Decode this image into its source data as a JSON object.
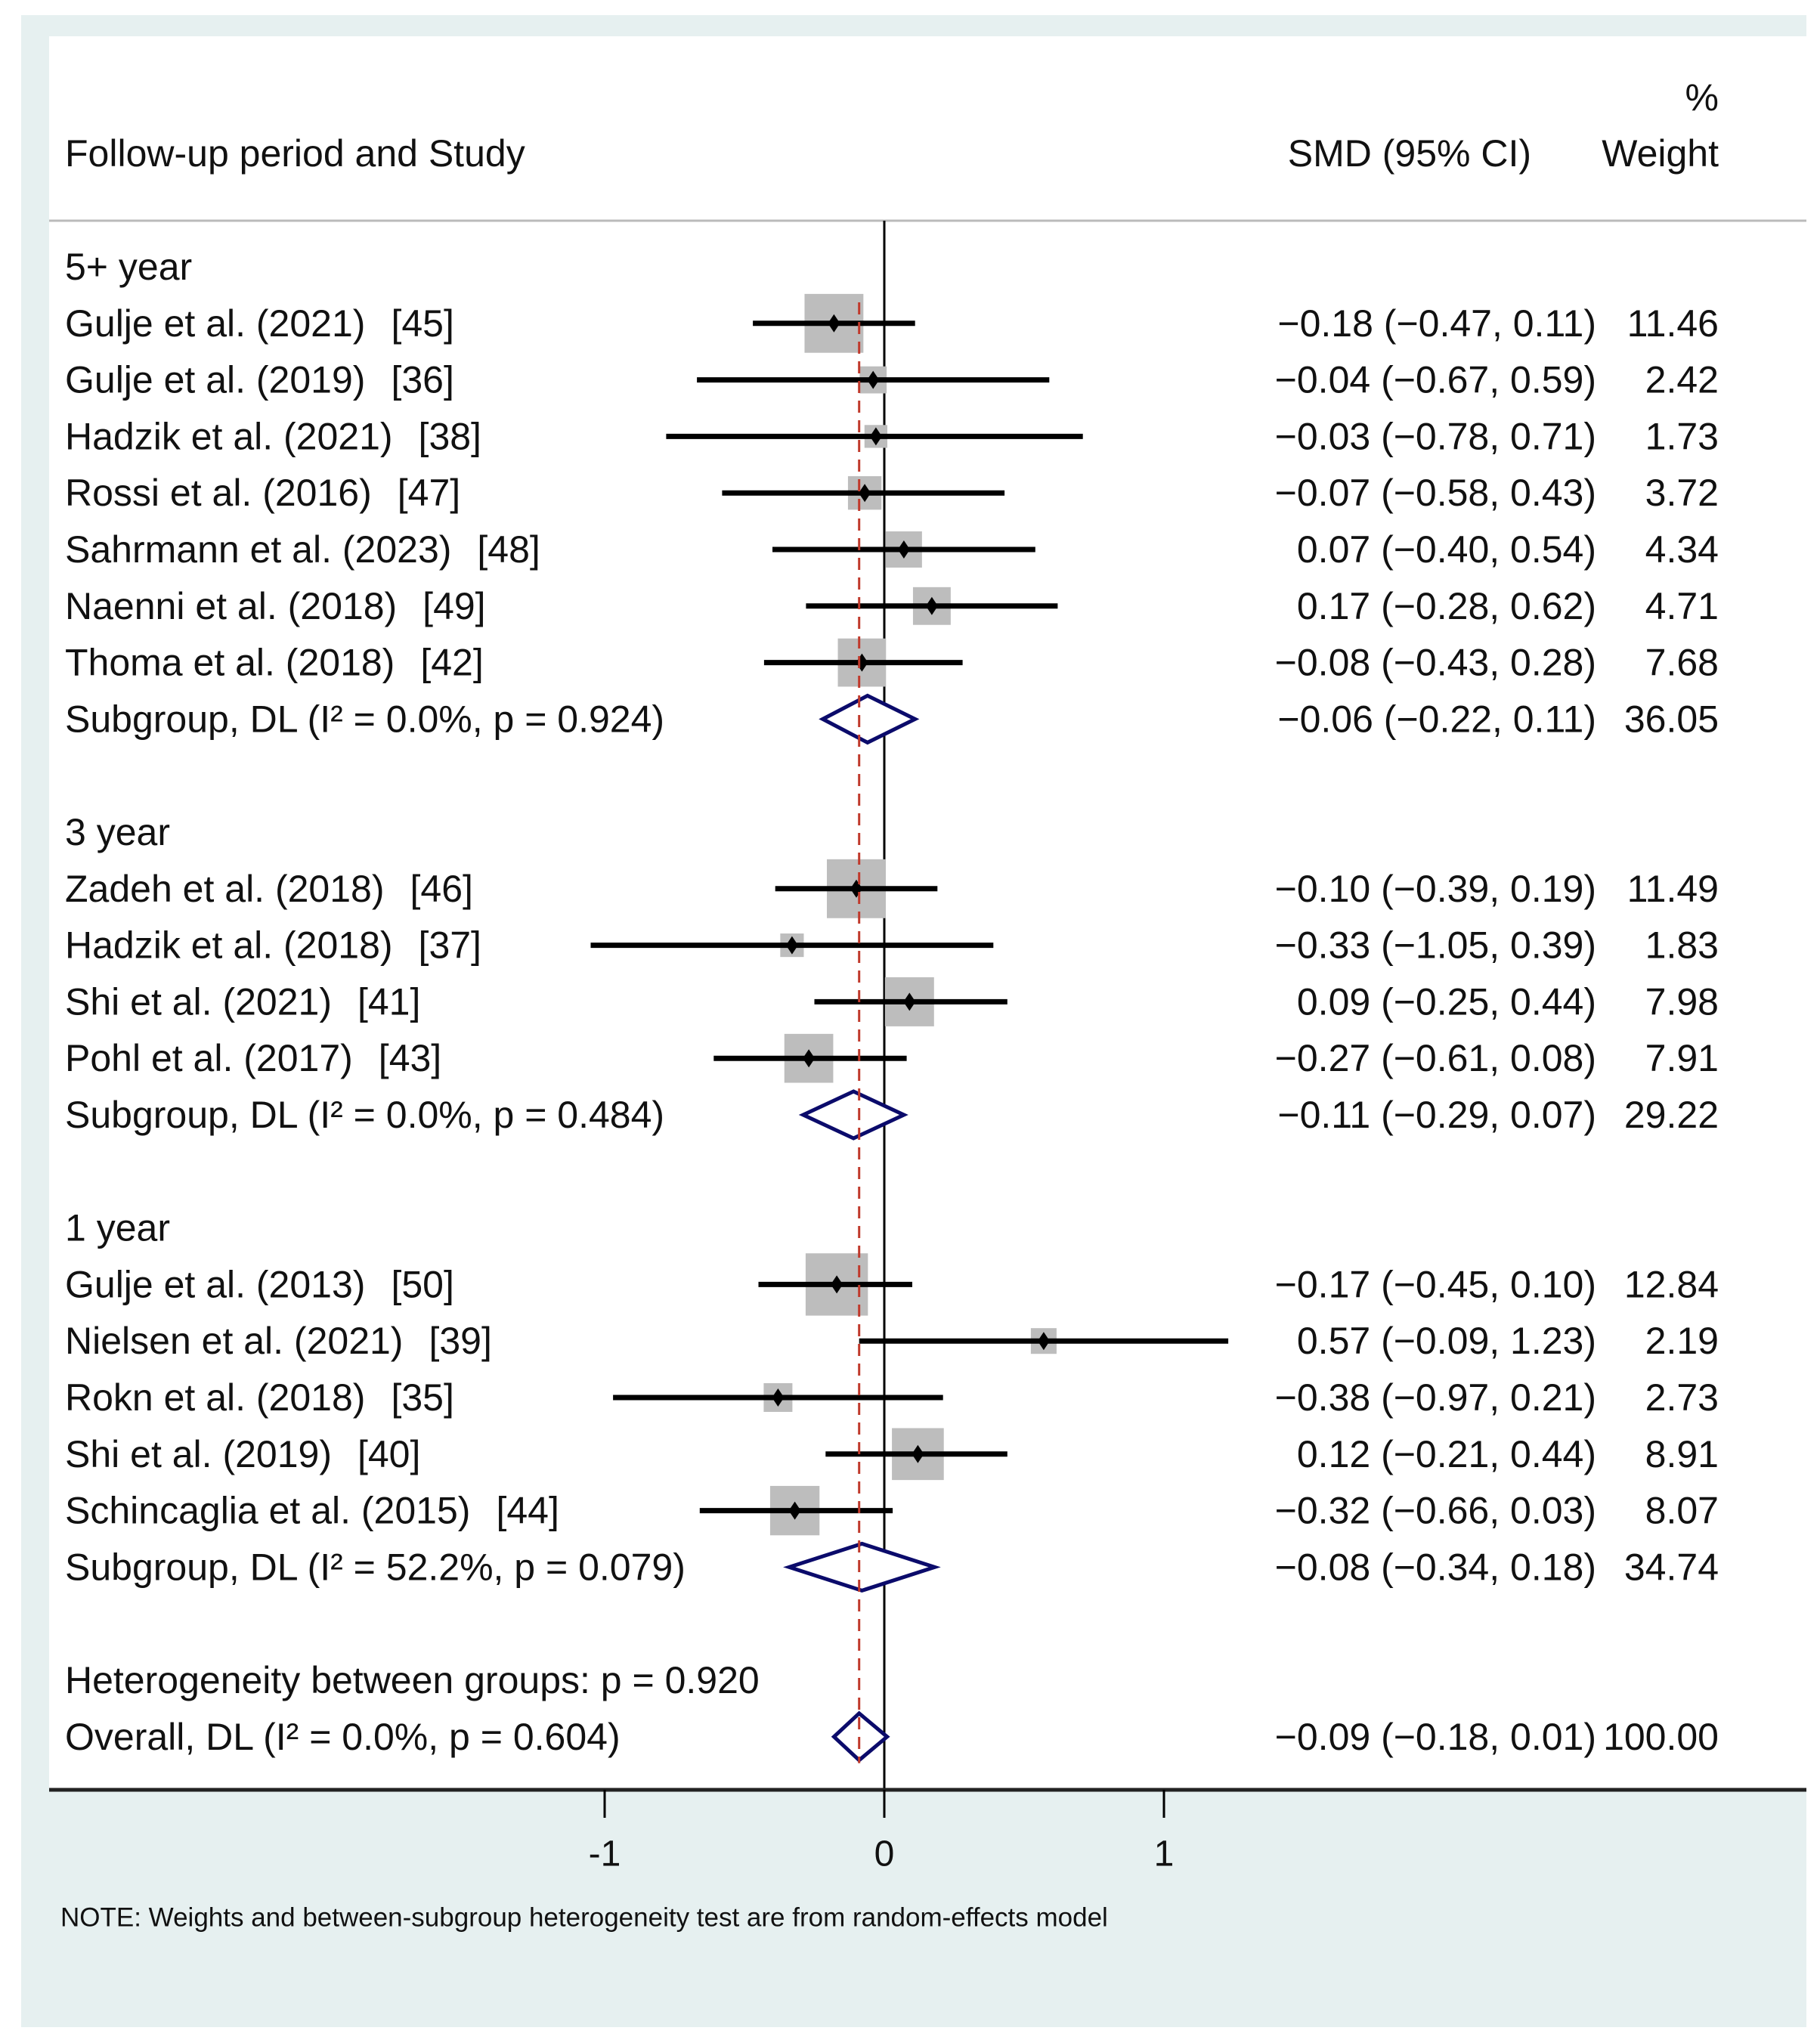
{
  "chart_data": {
    "type": "forest",
    "header": {
      "study_col": "Follow-up period and Study",
      "effect_col": "SMD (95% CI)",
      "weight_col_top": "%",
      "weight_col": "Weight"
    },
    "groups": [
      {
        "label": "5+ year",
        "studies": [
          {
            "name": "Gulje et al. (2021)",
            "ref": "[45]",
            "smd": -0.18,
            "lo": -0.47,
            "hi": 0.11,
            "est_text": "−0.18 (−0.47, 0.11)",
            "weight": "11.46"
          },
          {
            "name": "Gulje et al. (2019)",
            "ref": "[36]",
            "smd": -0.04,
            "lo": -0.67,
            "hi": 0.59,
            "est_text": "−0.04 (−0.67, 0.59)",
            "weight": "2.42"
          },
          {
            "name": "Hadzik et al. (2021)",
            "ref": "[38]",
            "smd": -0.03,
            "lo": -0.78,
            "hi": 0.71,
            "est_text": "−0.03 (−0.78, 0.71)",
            "weight": "1.73"
          },
          {
            "name": "Rossi et al. (2016)",
            "ref": "[47]",
            "smd": -0.07,
            "lo": -0.58,
            "hi": 0.43,
            "est_text": "−0.07 (−0.58, 0.43)",
            "weight": "3.72"
          },
          {
            "name": "Sahrmann et al. (2023)",
            "ref": "[48]",
            "smd": 0.07,
            "lo": -0.4,
            "hi": 0.54,
            "est_text": "0.07 (−0.40, 0.54)",
            "weight": "4.34"
          },
          {
            "name": "Naenni et al. (2018)",
            "ref": "[49]",
            "smd": 0.17,
            "lo": -0.28,
            "hi": 0.62,
            "est_text": "0.17 (−0.28, 0.62)",
            "weight": "4.71"
          },
          {
            "name": "Thoma et al. (2018)",
            "ref": "[42]",
            "smd": -0.08,
            "lo": -0.43,
            "hi": 0.28,
            "est_text": "−0.08 (−0.43, 0.28)",
            "weight": "7.68"
          }
        ],
        "subgroup": {
          "label": "Subgroup, DL (I² = 0.0%, p = 0.924)",
          "smd": -0.06,
          "lo": -0.22,
          "hi": 0.11,
          "est_text": "−0.06 (−0.22, 0.11)",
          "weight": "36.05"
        }
      },
      {
        "label": "3 year",
        "studies": [
          {
            "name": "Zadeh et al. (2018)",
            "ref": "[46]",
            "smd": -0.1,
            "lo": -0.39,
            "hi": 0.19,
            "est_text": "−0.10 (−0.39, 0.19)",
            "weight": "11.49"
          },
          {
            "name": "Hadzik et al. (2018)",
            "ref": "[37]",
            "smd": -0.33,
            "lo": -1.05,
            "hi": 0.39,
            "est_text": "−0.33 (−1.05, 0.39)",
            "weight": "1.83"
          },
          {
            "name": "Shi et al. (2021)",
            "ref": "[41]",
            "smd": 0.09,
            "lo": -0.25,
            "hi": 0.44,
            "est_text": "0.09 (−0.25, 0.44)",
            "weight": "7.98"
          },
          {
            "name": "Pohl et al. (2017)",
            "ref": "[43]",
            "smd": -0.27,
            "lo": -0.61,
            "hi": 0.08,
            "est_text": "−0.27 (−0.61, 0.08)",
            "weight": "7.91"
          }
        ],
        "subgroup": {
          "label": "Subgroup, DL (I² = 0.0%, p = 0.484)",
          "smd": -0.11,
          "lo": -0.29,
          "hi": 0.07,
          "est_text": "−0.11 (−0.29, 0.07)",
          "weight": "29.22"
        }
      },
      {
        "label": "1 year",
        "studies": [
          {
            "name": "Gulje et al. (2013)",
            "ref": "[50]",
            "smd": -0.17,
            "lo": -0.45,
            "hi": 0.1,
            "est_text": "−0.17 (−0.45, 0.10)",
            "weight": "12.84"
          },
          {
            "name": "Nielsen et al. (2021)",
            "ref": "[39]",
            "smd": 0.57,
            "lo": -0.09,
            "hi": 1.23,
            "est_text": "0.57 (−0.09, 1.23)",
            "weight": "2.19"
          },
          {
            "name": "Rokn et al. (2018)",
            "ref": "[35]",
            "smd": -0.38,
            "lo": -0.97,
            "hi": 0.21,
            "est_text": "−0.38 (−0.97, 0.21)",
            "weight": "2.73"
          },
          {
            "name": "Shi et al. (2019)",
            "ref": "[40]",
            "smd": 0.12,
            "lo": -0.21,
            "hi": 0.44,
            "est_text": "0.12 (−0.21, 0.44)",
            "weight": "8.91"
          },
          {
            "name": "Schincaglia et al. (2015)",
            "ref": "[44]",
            "smd": -0.32,
            "lo": -0.66,
            "hi": 0.03,
            "est_text": "−0.32 (−0.66, 0.03)",
            "weight": "8.07"
          }
        ],
        "subgroup": {
          "label": "Subgroup, DL (I² = 52.2%, p = 0.079)",
          "smd": -0.08,
          "lo": -0.34,
          "hi": 0.18,
          "est_text": "−0.08 (−0.34, 0.18)",
          "weight": "34.74"
        }
      }
    ],
    "heterogeneity": "Heterogeneity between groups: p = 0.920",
    "overall": {
      "label": "Overall, DL (I² = 0.0%, p = 0.604)",
      "smd": -0.09,
      "lo": -0.18,
      "hi": 0.01,
      "est_text": "−0.09 (−0.18, 0.01)",
      "weight": "100.00"
    },
    "x_ticks": [
      {
        "value": -1,
        "label": "-1"
      },
      {
        "value": 0,
        "label": "0"
      },
      {
        "value": 1,
        "label": "1"
      }
    ],
    "xlim": [
      -1.0,
      1.3
    ],
    "note": "NOTE: Weights and between-subgroup heterogeneity test are from random-effects model",
    "colors": {
      "background": "#e6f0f0",
      "box": "#bdbdbd",
      "diamond": "#0b0b6b",
      "pooled_line": "#c0392b"
    }
  }
}
